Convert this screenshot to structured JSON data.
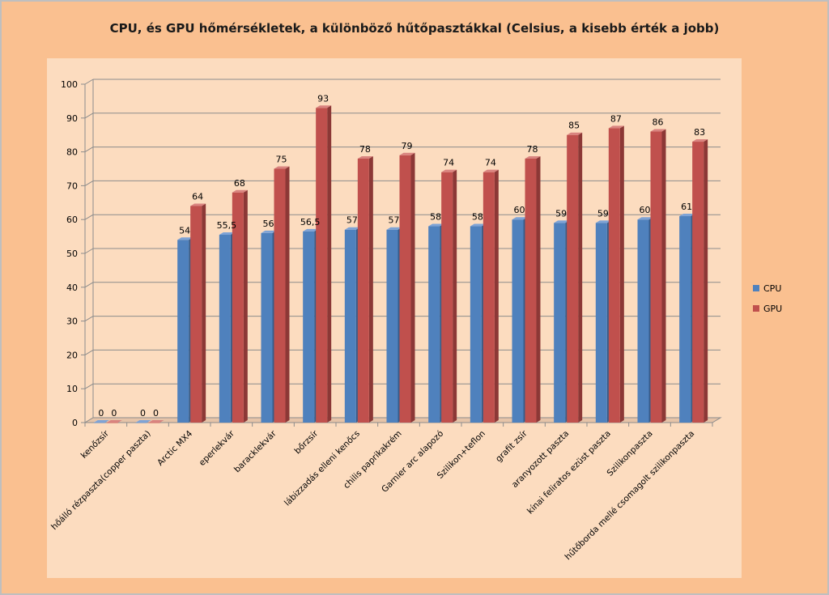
{
  "chart_data": {
    "type": "bar",
    "title": "CPU, és GPU hőmérsékletek, a különböző hűtőpasztákkal (Celsius, a kisebb érték a jobb)",
    "categories": [
      "kenőzsír",
      "hőálló rézpaszta(copper paszta)",
      "Arctic MX4",
      "eperlekvár",
      "baracklekvár",
      "bőrzsír",
      "lábizzadás elleni kenőcs",
      "chilis paprikakrém",
      "Garnier arc alapozó",
      "Szilikon+teflon",
      "grafit zsír",
      "aranyozott paszta",
      "kínai feliratos ezüst paszta",
      "Szilikonpaszta",
      "hűtőborda mellé csomagolt szilikonpaszta"
    ],
    "series": [
      {
        "name": "CPU",
        "color": "#4f81bd",
        "side": "#385d8a",
        "top": "#7ea3d6",
        "values": [
          0,
          0,
          54,
          55.5,
          56,
          56.5,
          57,
          57,
          58,
          58,
          60,
          59,
          59,
          60,
          61
        ],
        "labels": [
          "0",
          "0",
          "54",
          "55,5",
          "56",
          "56,5",
          "57",
          "57",
          "58",
          "58",
          "60",
          "59",
          "59",
          "60",
          "61"
        ]
      },
      {
        "name": "GPU",
        "color": "#c0504d",
        "side": "#8c3836",
        "top": "#d9837f",
        "values": [
          0,
          0,
          64,
          68,
          75,
          93,
          78,
          79,
          74,
          74,
          78,
          85,
          87,
          86,
          83
        ],
        "labels": [
          "0",
          "0",
          "64",
          "68",
          "75",
          "93",
          "78",
          "79",
          "74",
          "74",
          "78",
          "85",
          "87",
          "86",
          "83"
        ]
      }
    ],
    "ylim": [
      0,
      100
    ],
    "yticks": [
      "0",
      "10",
      "20",
      "30",
      "40",
      "50",
      "60",
      "70",
      "80",
      "90",
      "100"
    ],
    "grid": true,
    "legend": "right"
  }
}
